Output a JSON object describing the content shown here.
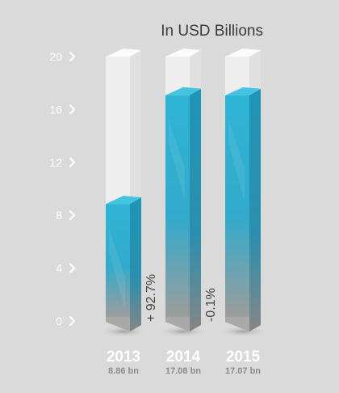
{
  "chart_data": {
    "type": "bar",
    "title": "In USD Billions",
    "categories": [
      "2013",
      "2014",
      "2015"
    ],
    "values": [
      8.86,
      17.08,
      17.07
    ],
    "value_labels": [
      "8.86 bn",
      "17.08 bn",
      "17.07 bn"
    ],
    "changes": [
      "+ 92.7%",
      "-0.1%"
    ],
    "yticks": [
      "0",
      "4",
      "8",
      "12",
      "16",
      "20"
    ],
    "ylim": [
      0,
      20
    ],
    "grid": false,
    "legend": "none"
  },
  "colors": {
    "background": "#dadada",
    "fill_top": "#35b6d6",
    "fill_bottom": "#9a9a9a",
    "glass": "#f2f2f2"
  }
}
